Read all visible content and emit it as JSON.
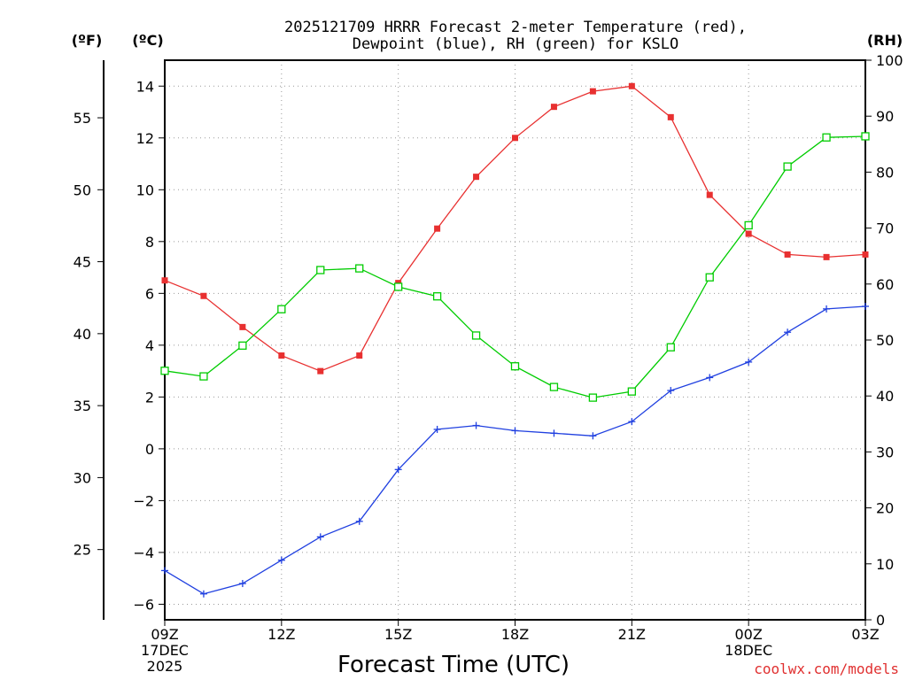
{
  "chart_data": {
    "type": "line",
    "title_line1": "2025121709 HRRR Forecast 2-meter Temperature (red),",
    "title_line2": "Dewpoint (blue), RH (green) for KSLO",
    "xlabel": "Forecast Time (UTC)",
    "credit": "coolwx.com/models",
    "left_axis_f_label": "(ºF)",
    "left_axis_c_label": "(ºC)",
    "right_axis_label": "(RH)",
    "x": [
      0,
      1,
      2,
      3,
      4,
      5,
      6,
      7,
      8,
      9,
      10,
      11,
      12,
      13,
      14,
      15,
      16,
      17,
      18
    ],
    "xlim": [
      0,
      18
    ],
    "x_ticks": [
      {
        "x": 0,
        "label": "09Z",
        "sub1": "17DEC",
        "sub2": "2025"
      },
      {
        "x": 3,
        "label": "12Z",
        "sub1": "",
        "sub2": ""
      },
      {
        "x": 6,
        "label": "15Z",
        "sub1": "",
        "sub2": ""
      },
      {
        "x": 9,
        "label": "18Z",
        "sub1": "",
        "sub2": ""
      },
      {
        "x": 12,
        "label": "21Z",
        "sub1": "",
        "sub2": ""
      },
      {
        "x": 15,
        "label": "00Z",
        "sub1": "18DEC",
        "sub2": ""
      },
      {
        "x": 18,
        "label": "03Z",
        "sub1": "",
        "sub2": ""
      }
    ],
    "ylim_c": [
      -6.6,
      15.0
    ],
    "y_ticks_c": [
      -6,
      -4,
      -2,
      0,
      2,
      4,
      6,
      8,
      10,
      12,
      14
    ],
    "y_ticks_f": [
      25,
      30,
      35,
      40,
      45,
      50,
      55
    ],
    "ylim_rh": [
      0,
      100
    ],
    "y_ticks_rh": [
      0,
      10,
      20,
      30,
      40,
      50,
      60,
      70,
      80,
      90,
      100
    ],
    "colors": {
      "temperature": "#e83030",
      "dewpoint": "#2040e0",
      "rh": "#00cc00"
    },
    "series": [
      {
        "name": "Temperature",
        "unit": "C",
        "axis": "c",
        "marker": "filled-square",
        "values": [
          6.5,
          5.9,
          4.7,
          3.6,
          3.0,
          3.6,
          6.4,
          8.5,
          10.5,
          12.0,
          13.2,
          13.8,
          14.0,
          12.8,
          9.8,
          8.3,
          7.5,
          7.4,
          7.5
        ]
      },
      {
        "name": "Dewpoint",
        "unit": "C",
        "axis": "c",
        "marker": "plus",
        "values": [
          -4.7,
          -5.6,
          -5.2,
          -4.3,
          -3.4,
          -2.8,
          -0.8,
          0.75,
          0.9,
          0.7,
          0.6,
          0.5,
          1.05,
          2.25,
          2.75,
          3.35,
          4.5,
          5.4,
          5.5
        ]
      },
      {
        "name": "RH",
        "unit": "%",
        "axis": "rh",
        "marker": "open-square",
        "values": [
          44.5,
          43.5,
          49.0,
          55.5,
          62.5,
          62.8,
          59.5,
          57.8,
          50.8,
          45.3,
          41.6,
          39.7,
          40.8,
          48.7,
          61.2,
          70.5,
          81.0,
          86.2,
          86.4
        ]
      }
    ]
  }
}
